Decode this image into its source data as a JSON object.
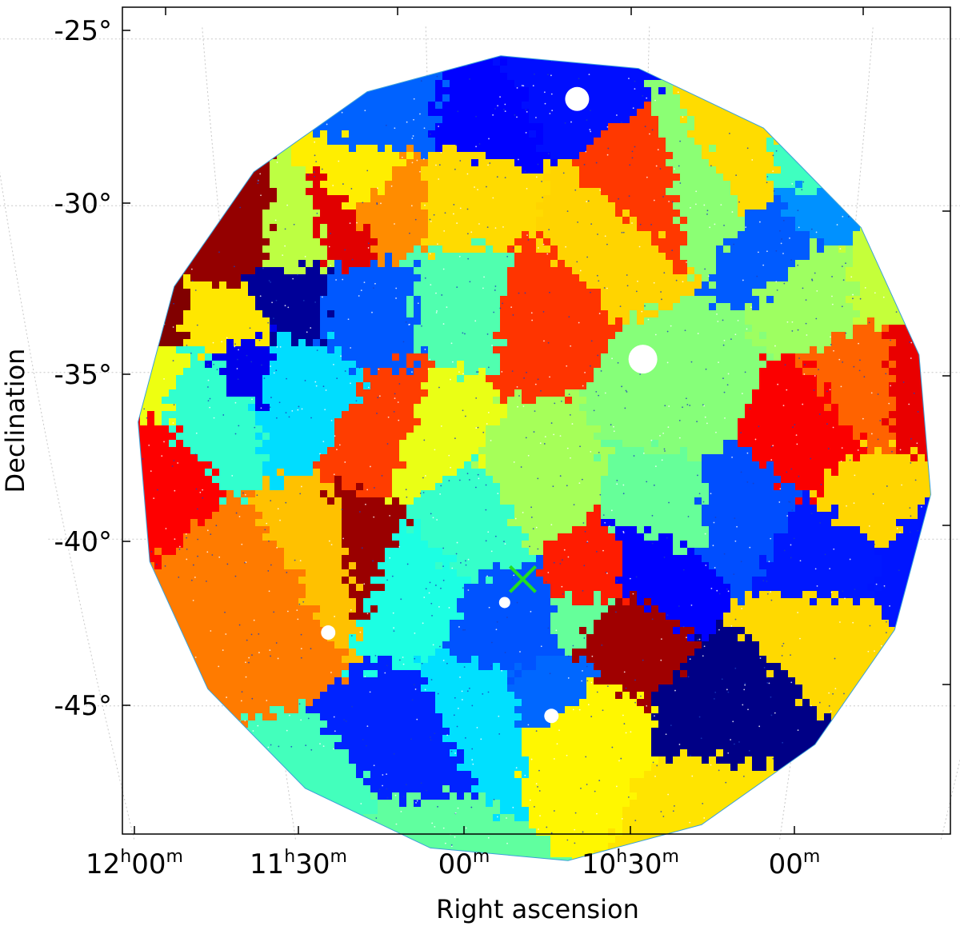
{
  "chart_data": {
    "type": "heatmap",
    "title": "",
    "xlabel": "Right ascension",
    "ylabel": "Declination",
    "x_ticks": [
      {
        "hours": "12",
        "minutes": "00"
      },
      {
        "hours": "11",
        "minutes": "30"
      },
      {
        "hours": "",
        "minutes": "00"
      },
      {
        "hours": "10",
        "minutes": "30"
      },
      {
        "hours": "",
        "minutes": "00"
      }
    ],
    "x_tick_ra_hours": [
      12.0,
      11.5,
      11.0,
      10.5,
      10.0
    ],
    "y_ticks": [
      "-25°",
      "-30°",
      "-35°",
      "-40°",
      "-45°"
    ],
    "y_tick_values": [
      -25,
      -30,
      -35,
      -40,
      -45
    ],
    "ra_range_hours": [
      9.55,
      12.05
    ],
    "dec_range": [
      -49.0,
      -24.5
    ],
    "field_center": {
      "ra_hours": 10.75,
      "dec": -37.5
    },
    "field_radius_deg": 10.8,
    "marker": {
      "symbol": "x",
      "ra_hours": 10.79,
      "dec": -41.2,
      "color": "#22dd22"
    },
    "masked_regions": [
      {
        "ra_hours": 10.66,
        "dec": -26.8
      },
      {
        "ra_hours": 10.49,
        "dec": -34.6
      },
      {
        "ra_hours": 10.84,
        "dec": -41.9
      },
      {
        "ra_hours": 11.33,
        "dec": -42.8
      },
      {
        "ra_hours": 10.71,
        "dec": -45.3
      }
    ],
    "colormap": "jet",
    "grid": true
  }
}
